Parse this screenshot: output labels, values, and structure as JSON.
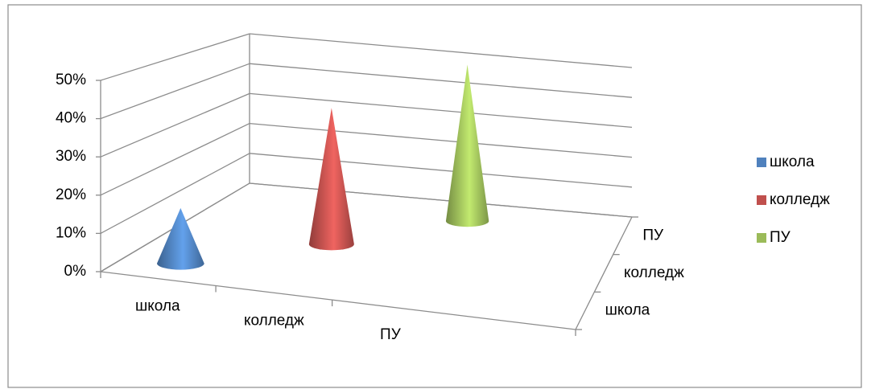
{
  "chart_data": {
    "type": "cone3d",
    "categories": [
      "школа",
      "колледж",
      "ПУ"
    ],
    "series": [
      {
        "name": "школа",
        "color": "#4f81bd",
        "values": [
          15,
          null,
          null
        ]
      },
      {
        "name": "колледж",
        "color": "#c0504d",
        "values": [
          null,
          40,
          null
        ]
      },
      {
        "name": "ПУ",
        "color": "#9bbb59",
        "values": [
          null,
          null,
          50
        ]
      }
    ],
    "ylim": [
      0,
      50
    ],
    "yticks": [
      {
        "value": 0,
        "label": "0%"
      },
      {
        "value": 10,
        "label": "10%"
      },
      {
        "value": 20,
        "label": "20%"
      },
      {
        "value": 30,
        "label": "30%"
      },
      {
        "value": 40,
        "label": "40%"
      },
      {
        "value": 50,
        "label": "50%"
      }
    ],
    "grid": true,
    "legend": "right"
  }
}
